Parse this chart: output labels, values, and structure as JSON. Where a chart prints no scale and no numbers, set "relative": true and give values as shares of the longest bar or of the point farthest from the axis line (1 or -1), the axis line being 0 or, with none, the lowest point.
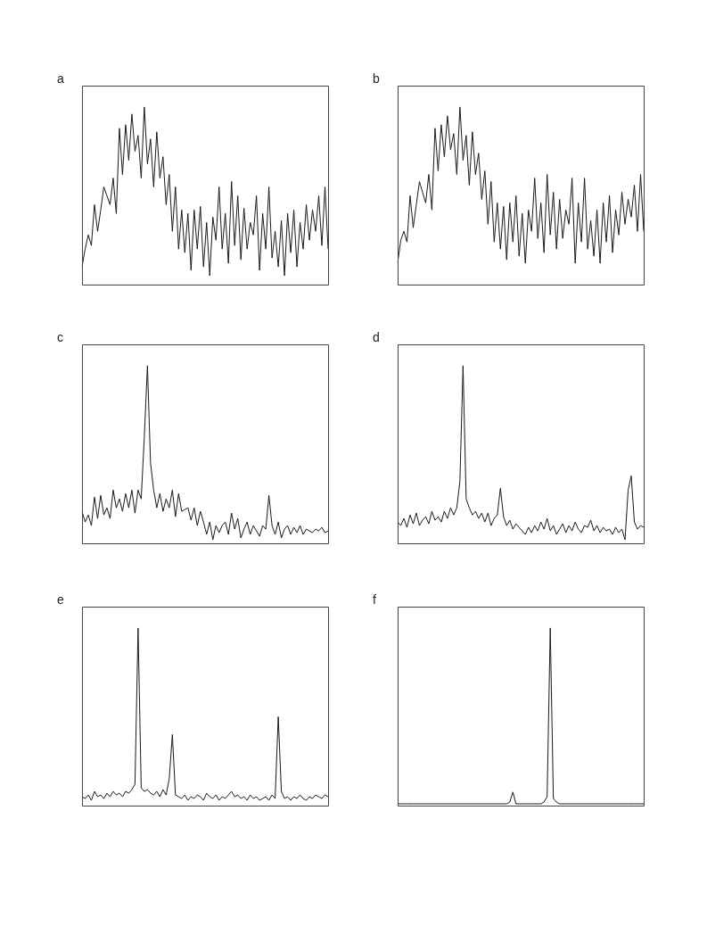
{
  "chart_data": [
    {
      "type": "line",
      "title": "a",
      "relative": true,
      "tick_labels": false,
      "color": "#1a1a1a",
      "categories": [
        null,
        null,
        null,
        null,
        null,
        null,
        null,
        null,
        null,
        null,
        null,
        null,
        null,
        null,
        null,
        null,
        null,
        null,
        null,
        null,
        null,
        null,
        null,
        null,
        null,
        null,
        null,
        null,
        null,
        null,
        null,
        null,
        null,
        null,
        null,
        null,
        null,
        null,
        null,
        null,
        null,
        null,
        null,
        null,
        null,
        null,
        null,
        null,
        null,
        null,
        null,
        null,
        null,
        null,
        null,
        null,
        null,
        null,
        null,
        null,
        null,
        null,
        null,
        null,
        null,
        null,
        null,
        null,
        null,
        null,
        null,
        null,
        null,
        null,
        null,
        null,
        null,
        null,
        null,
        null
      ],
      "values": [
        0.1,
        0.2,
        0.28,
        0.22,
        0.45,
        0.3,
        0.42,
        0.55,
        0.5,
        0.45,
        0.6,
        0.4,
        0.88,
        0.62,
        0.9,
        0.7,
        0.96,
        0.75,
        0.84,
        0.6,
        1.0,
        0.68,
        0.82,
        0.55,
        0.86,
        0.6,
        0.72,
        0.45,
        0.62,
        0.3,
        0.55,
        0.2,
        0.42,
        0.18,
        0.4,
        0.08,
        0.42,
        0.2,
        0.44,
        0.1,
        0.35,
        0.05,
        0.38,
        0.25,
        0.55,
        0.2,
        0.4,
        0.12,
        0.58,
        0.22,
        0.5,
        0.14,
        0.43,
        0.2,
        0.35,
        0.28,
        0.5,
        0.08,
        0.4,
        0.2,
        0.55,
        0.15,
        0.3,
        0.1,
        0.36,
        0.05,
        0.4,
        0.18,
        0.42,
        0.1,
        0.35,
        0.2,
        0.45,
        0.25,
        0.42,
        0.3,
        0.5,
        0.22,
        0.55,
        0.2
      ]
    },
    {
      "type": "line",
      "title": "b",
      "relative": true,
      "tick_labels": false,
      "color": "#1a1a1a",
      "categories": [
        null,
        null,
        null,
        null,
        null,
        null,
        null,
        null,
        null,
        null,
        null,
        null,
        null,
        null,
        null,
        null,
        null,
        null,
        null,
        null,
        null,
        null,
        null,
        null,
        null,
        null,
        null,
        null,
        null,
        null,
        null,
        null,
        null,
        null,
        null,
        null,
        null,
        null,
        null,
        null,
        null,
        null,
        null,
        null,
        null,
        null,
        null,
        null,
        null,
        null,
        null,
        null,
        null,
        null,
        null,
        null,
        null,
        null,
        null,
        null,
        null,
        null,
        null,
        null,
        null,
        null,
        null,
        null,
        null,
        null,
        null,
        null,
        null,
        null,
        null,
        null,
        null,
        null,
        null,
        null
      ],
      "values": [
        0.12,
        0.25,
        0.3,
        0.24,
        0.5,
        0.32,
        0.45,
        0.58,
        0.52,
        0.46,
        0.62,
        0.42,
        0.88,
        0.64,
        0.9,
        0.72,
        0.95,
        0.76,
        0.85,
        0.62,
        1.0,
        0.7,
        0.84,
        0.56,
        0.86,
        0.62,
        0.74,
        0.48,
        0.64,
        0.34,
        0.58,
        0.24,
        0.46,
        0.2,
        0.44,
        0.14,
        0.46,
        0.24,
        0.5,
        0.16,
        0.4,
        0.12,
        0.42,
        0.3,
        0.6,
        0.26,
        0.46,
        0.18,
        0.62,
        0.28,
        0.52,
        0.2,
        0.48,
        0.26,
        0.42,
        0.34,
        0.6,
        0.12,
        0.46,
        0.24,
        0.6,
        0.2,
        0.36,
        0.16,
        0.42,
        0.12,
        0.46,
        0.24,
        0.5,
        0.18,
        0.42,
        0.28,
        0.52,
        0.34,
        0.48,
        0.38,
        0.56,
        0.3,
        0.62,
        0.3
      ]
    },
    {
      "type": "line",
      "title": "c",
      "relative": true,
      "tick_labels": false,
      "color": "#1a1a1a",
      "categories": [
        null,
        null,
        null,
        null,
        null,
        null,
        null,
        null,
        null,
        null,
        null,
        null,
        null,
        null,
        null,
        null,
        null,
        null,
        null,
        null,
        null,
        null,
        null,
        null,
        null,
        null,
        null,
        null,
        null,
        null,
        null,
        null,
        null,
        null,
        null,
        null,
        null,
        null,
        null,
        null,
        null,
        null,
        null,
        null,
        null,
        null,
        null,
        null,
        null,
        null,
        null,
        null,
        null,
        null,
        null,
        null,
        null,
        null,
        null,
        null,
        null,
        null,
        null,
        null,
        null,
        null,
        null,
        null,
        null,
        null,
        null,
        null,
        null,
        null,
        null,
        null,
        null,
        null,
        null,
        null
      ],
      "values": [
        0.18,
        0.12,
        0.16,
        0.1,
        0.26,
        0.14,
        0.27,
        0.16,
        0.2,
        0.14,
        0.3,
        0.2,
        0.25,
        0.18,
        0.28,
        0.2,
        0.3,
        0.17,
        0.3,
        0.25,
        0.6,
        1.0,
        0.45,
        0.3,
        0.2,
        0.28,
        0.18,
        0.25,
        0.2,
        0.3,
        0.15,
        0.28,
        0.18,
        0.19,
        0.2,
        0.13,
        0.2,
        0.1,
        0.18,
        0.12,
        0.05,
        0.12,
        0.02,
        0.1,
        0.06,
        0.1,
        0.12,
        0.05,
        0.17,
        0.08,
        0.14,
        0.03,
        0.08,
        0.12,
        0.05,
        0.1,
        0.07,
        0.04,
        0.1,
        0.08,
        0.27,
        0.1,
        0.05,
        0.12,
        0.03,
        0.08,
        0.1,
        0.05,
        0.09,
        0.06,
        0.1,
        0.05,
        0.08,
        0.07,
        0.06,
        0.08,
        0.07,
        0.09,
        0.06,
        0.07
      ]
    },
    {
      "type": "line",
      "title": "d",
      "relative": true,
      "tick_labels": false,
      "color": "#1a1a1a",
      "categories": [
        null,
        null,
        null,
        null,
        null,
        null,
        null,
        null,
        null,
        null,
        null,
        null,
        null,
        null,
        null,
        null,
        null,
        null,
        null,
        null,
        null,
        null,
        null,
        null,
        null,
        null,
        null,
        null,
        null,
        null,
        null,
        null,
        null,
        null,
        null,
        null,
        null,
        null,
        null,
        null,
        null,
        null,
        null,
        null,
        null,
        null,
        null,
        null,
        null,
        null,
        null,
        null,
        null,
        null,
        null,
        null,
        null,
        null,
        null,
        null,
        null,
        null,
        null,
        null,
        null,
        null,
        null,
        null,
        null,
        null,
        null,
        null,
        null,
        null,
        null,
        null,
        null,
        null,
        null,
        null
      ],
      "values": [
        0.12,
        0.1,
        0.14,
        0.09,
        0.16,
        0.11,
        0.17,
        0.1,
        0.13,
        0.15,
        0.11,
        0.18,
        0.13,
        0.15,
        0.12,
        0.18,
        0.14,
        0.2,
        0.16,
        0.2,
        0.35,
        1.0,
        0.25,
        0.2,
        0.16,
        0.18,
        0.14,
        0.17,
        0.12,
        0.17,
        0.1,
        0.14,
        0.16,
        0.31,
        0.15,
        0.1,
        0.13,
        0.08,
        0.11,
        0.09,
        0.07,
        0.05,
        0.09,
        0.06,
        0.1,
        0.07,
        0.12,
        0.08,
        0.14,
        0.07,
        0.1,
        0.05,
        0.08,
        0.11,
        0.06,
        0.1,
        0.07,
        0.12,
        0.08,
        0.06,
        0.1,
        0.09,
        0.13,
        0.07,
        0.1,
        0.06,
        0.09,
        0.07,
        0.08,
        0.05,
        0.09,
        0.06,
        0.08,
        0.02,
        0.3,
        0.38,
        0.12,
        0.08,
        0.1,
        0.09
      ]
    },
    {
      "type": "line",
      "title": "e",
      "relative": true,
      "tick_labels": false,
      "color": "#1a1a1a",
      "categories": [
        null,
        null,
        null,
        null,
        null,
        null,
        null,
        null,
        null,
        null,
        null,
        null,
        null,
        null,
        null,
        null,
        null,
        null,
        null,
        null,
        null,
        null,
        null,
        null,
        null,
        null,
        null,
        null,
        null,
        null,
        null,
        null,
        null,
        null,
        null,
        null,
        null,
        null,
        null,
        null,
        null,
        null,
        null,
        null,
        null,
        null,
        null,
        null,
        null,
        null,
        null,
        null,
        null,
        null,
        null,
        null,
        null,
        null,
        null,
        null,
        null,
        null,
        null,
        null,
        null,
        null,
        null,
        null,
        null,
        null,
        null,
        null,
        null,
        null,
        null,
        null,
        null,
        null,
        null,
        null
      ],
      "values": [
        0.05,
        0.04,
        0.06,
        0.03,
        0.08,
        0.05,
        0.06,
        0.04,
        0.07,
        0.05,
        0.08,
        0.06,
        0.07,
        0.05,
        0.08,
        0.07,
        0.09,
        0.12,
        1.0,
        0.1,
        0.08,
        0.09,
        0.07,
        0.06,
        0.08,
        0.05,
        0.09,
        0.06,
        0.15,
        0.4,
        0.06,
        0.05,
        0.04,
        0.06,
        0.03,
        0.05,
        0.04,
        0.06,
        0.05,
        0.03,
        0.07,
        0.05,
        0.04,
        0.06,
        0.03,
        0.05,
        0.04,
        0.06,
        0.08,
        0.05,
        0.06,
        0.04,
        0.05,
        0.03,
        0.06,
        0.04,
        0.05,
        0.03,
        0.04,
        0.05,
        0.03,
        0.06,
        0.04,
        0.5,
        0.08,
        0.04,
        0.05,
        0.03,
        0.05,
        0.04,
        0.06,
        0.04,
        0.03,
        0.05,
        0.04,
        0.06,
        0.05,
        0.04,
        0.06,
        0.05
      ]
    },
    {
      "type": "line",
      "title": "f",
      "relative": true,
      "tick_labels": false,
      "color": "#1a1a1a",
      "categories": [
        null,
        null,
        null,
        null,
        null,
        null,
        null,
        null,
        null,
        null,
        null,
        null,
        null,
        null,
        null,
        null,
        null,
        null,
        null,
        null,
        null,
        null,
        null,
        null,
        null,
        null,
        null,
        null,
        null,
        null,
        null,
        null,
        null,
        null,
        null,
        null,
        null,
        null,
        null,
        null,
        null,
        null,
        null,
        null,
        null,
        null,
        null,
        null,
        null,
        null,
        null,
        null,
        null,
        null,
        null,
        null,
        null,
        null,
        null,
        null,
        null,
        null,
        null,
        null,
        null,
        null,
        null,
        null,
        null,
        null,
        null,
        null,
        null,
        null,
        null,
        null,
        null,
        null,
        null,
        null
      ],
      "values": [
        0.01,
        0.01,
        0.01,
        0.01,
        0.01,
        0.01,
        0.01,
        0.01,
        0.01,
        0.01,
        0.01,
        0.01,
        0.01,
        0.01,
        0.01,
        0.01,
        0.01,
        0.01,
        0.01,
        0.01,
        0.01,
        0.01,
        0.01,
        0.01,
        0.01,
        0.01,
        0.01,
        0.01,
        0.01,
        0.01,
        0.01,
        0.01,
        0.01,
        0.01,
        0.01,
        0.01,
        0.02,
        0.076,
        0.01,
        0.01,
        0.01,
        0.01,
        0.01,
        0.01,
        0.01,
        0.01,
        0.01,
        0.02,
        0.05,
        1.0,
        0.04,
        0.02,
        0.01,
        0.01,
        0.01,
        0.01,
        0.01,
        0.01,
        0.01,
        0.01,
        0.01,
        0.01,
        0.01,
        0.01,
        0.01,
        0.01,
        0.01,
        0.01,
        0.01,
        0.01,
        0.01,
        0.01,
        0.01,
        0.01,
        0.01,
        0.01,
        0.01,
        0.01,
        0.01,
        0.01
      ]
    }
  ]
}
